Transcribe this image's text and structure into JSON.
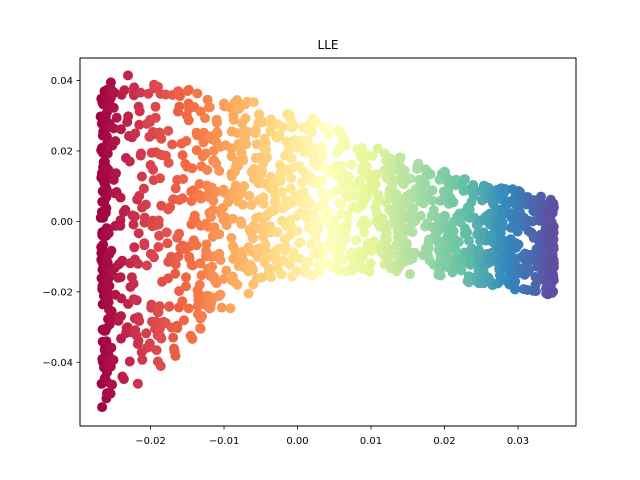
{
  "chart_data": {
    "type": "scatter",
    "title": "LLE",
    "xlabel": "",
    "ylabel": "",
    "xlim": [
      -0.0296,
      0.0379
    ],
    "ylim": [
      -0.0581,
      0.0464
    ],
    "x_ticks": [
      -0.02,
      -0.01,
      0.0,
      0.01,
      0.02,
      0.03
    ],
    "x_tick_labels": [
      "−0.02",
      "−0.01",
      "0.00",
      "0.01",
      "0.02",
      "0.03"
    ],
    "y_ticks": [
      -0.04,
      -0.02,
      0.0,
      0.02,
      0.04
    ],
    "y_tick_labels": [
      "−0.04",
      "−0.02",
      "0.00",
      "0.02",
      "0.04"
    ],
    "grid": false,
    "colormap": "Spectral",
    "colormap_stops": [
      "#9e0142",
      "#d53e4f",
      "#f46d43",
      "#fdae61",
      "#fee08b",
      "#ffffbf",
      "#e6f598",
      "#abdda4",
      "#66c2a5",
      "#3288bd",
      "#5e4fa2"
    ],
    "point_count": 1500,
    "envelope": {
      "x": [
        -0.0268,
        -0.023,
        -0.02,
        -0.017,
        -0.013,
        -0.008,
        -0.003,
        0.0,
        0.005,
        0.01,
        0.015,
        0.02,
        0.025,
        0.03,
        0.0349
      ],
      "upper": [
        0.0395,
        0.042,
        0.0405,
        0.0385,
        0.0365,
        0.035,
        0.0335,
        0.0315,
        0.027,
        0.0215,
        0.0175,
        0.0145,
        0.011,
        0.009,
        0.006
      ],
      "lower": [
        -0.053,
        -0.05,
        -0.044,
        -0.04,
        -0.031,
        -0.023,
        -0.0175,
        -0.016,
        -0.0145,
        -0.0145,
        -0.015,
        -0.016,
        -0.018,
        -0.0195,
        -0.021
      ]
    }
  }
}
